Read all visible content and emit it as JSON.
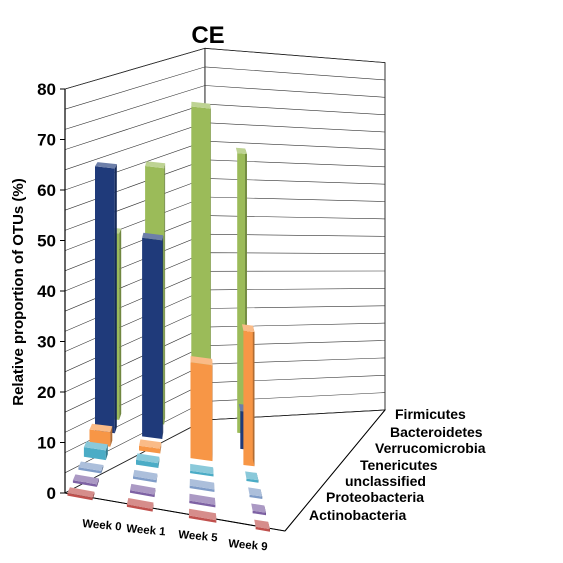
{
  "chart_data": {
    "type": "bar",
    "title": "CE",
    "ylabel": "Relative proportion of OTUs (%)",
    "xlabel": "",
    "ylim": [
      0,
      80
    ],
    "yticks": [
      "0",
      "10",
      "20",
      "30",
      "40",
      "50",
      "60",
      "70",
      "80"
    ],
    "categories": [
      "Week 0",
      "Week 1",
      "Week 5",
      "Week 9"
    ],
    "grid": true,
    "series": [
      {
        "name": "Firmicutes",
        "color": "#9BBB59",
        "values": [
          40,
          55,
          69,
          60
        ]
      },
      {
        "name": "Bacteroidetes",
        "color": "#1F3A7A",
        "values": [
          56,
          42,
          9,
          8
        ]
      },
      {
        "name": "Verrucomicrobia",
        "color": "#F79646",
        "values": [
          3,
          1,
          20,
          28
        ]
      },
      {
        "name": "Tenericutes",
        "color": "#4BACC6",
        "values": [
          2,
          1,
          0.5,
          0.5
        ]
      },
      {
        "name": "unclassified",
        "color": "#7F9CC8",
        "values": [
          0.5,
          0.5,
          0.5,
          0.5
        ]
      },
      {
        "name": "Proteobacteria",
        "color": "#7E62A4",
        "values": [
          0.5,
          0.5,
          0.5,
          0.5
        ]
      },
      {
        "name": "Actinobacteria",
        "color": "#C0504D",
        "values": [
          0.5,
          0.5,
          0.5,
          0.5
        ]
      }
    ]
  }
}
